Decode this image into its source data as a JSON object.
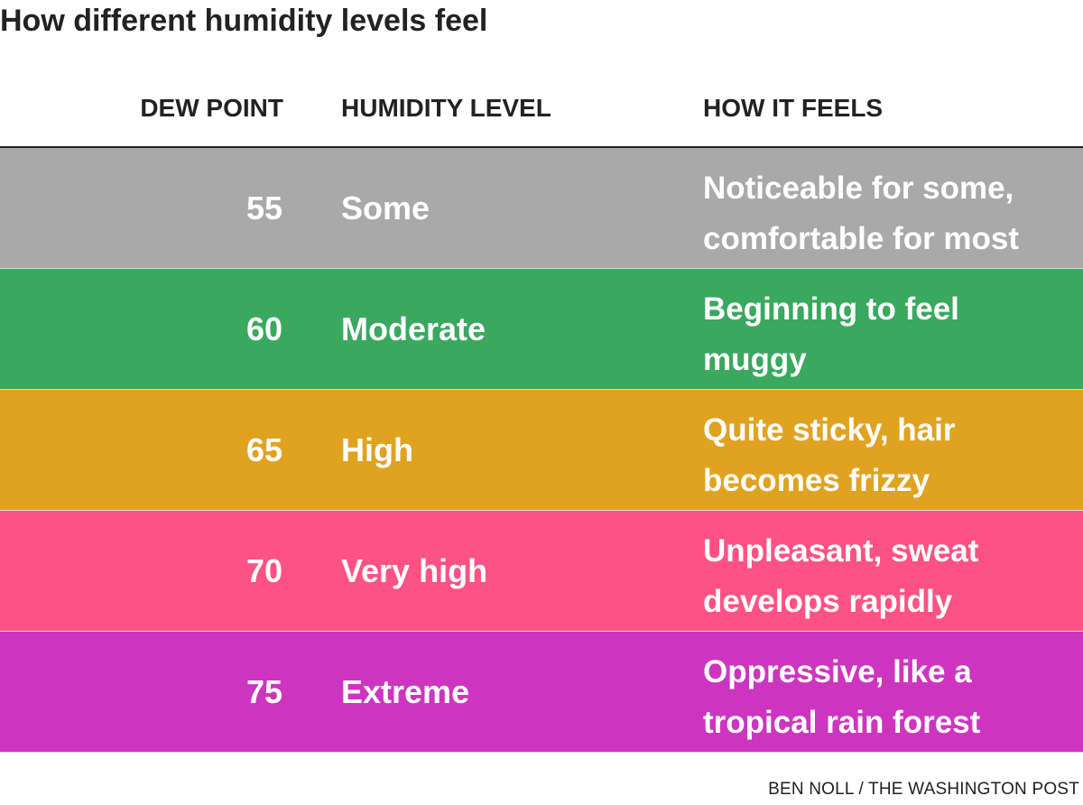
{
  "title": "How different humidity levels feel",
  "credit": "BEN NOLL / THE WASHINGTON POST",
  "chart_data": {
    "type": "table",
    "columns": [
      "DEW POINT",
      "HUMIDITY LEVEL",
      "HOW IT FEELS"
    ],
    "rows": [
      {
        "dew_point": "55",
        "level": "Some",
        "feels": [
          "Noticeable for some,",
          "comfortable for most"
        ],
        "color": "#a9a9a9"
      },
      {
        "dew_point": "60",
        "level": "Moderate",
        "feels": [
          "Beginning to feel",
          "muggy"
        ],
        "color": "#3aa85f"
      },
      {
        "dew_point": "65",
        "level": "High",
        "feels": [
          "Quite sticky, hair",
          "becomes frizzy"
        ],
        "color": "#e0a321"
      },
      {
        "dew_point": "70",
        "level": "Very high",
        "feels": [
          "Unpleasant, sweat",
          "develops rapidly"
        ],
        "color": "#ff5284"
      },
      {
        "dew_point": "75",
        "level": "Extreme",
        "feels": [
          "Oppressive, like a",
          "tropical rain forest"
        ],
        "color": "#cd35c0"
      }
    ]
  }
}
